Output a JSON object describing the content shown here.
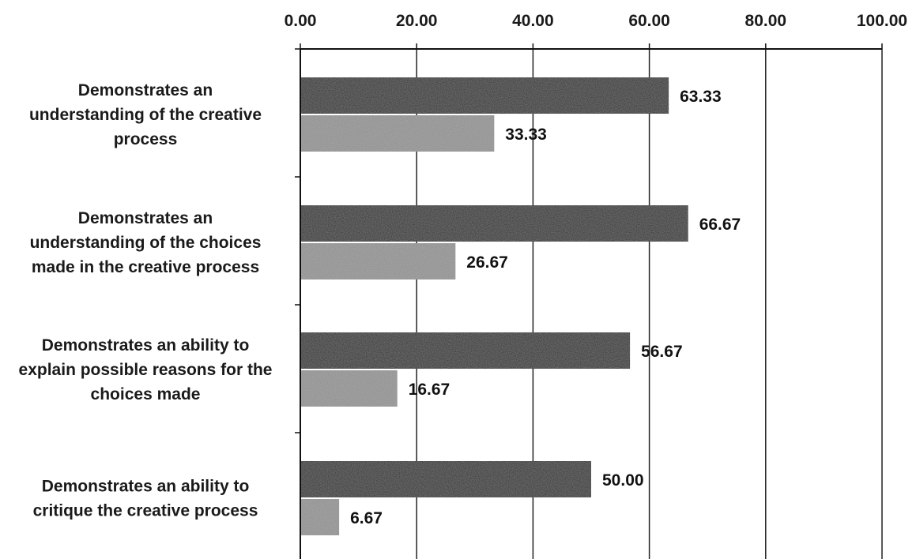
{
  "chart_data": {
    "type": "bar",
    "orientation": "horizontal",
    "title": "",
    "xlabel": "",
    "ylabel": "",
    "xlim": [
      0,
      100
    ],
    "x_ticks": [
      "0.00",
      "20.00",
      "40.00",
      "60.00",
      "80.00",
      "100.00"
    ],
    "x_tick_values": [
      0,
      20,
      40,
      60,
      80,
      100
    ],
    "x_axis_position": "top",
    "grid": true,
    "legend": "none",
    "categories": [
      [
        "Demonstrates an",
        "understanding of the creative",
        "process"
      ],
      [
        "Demonstrates an",
        "understanding of the choices",
        "made in the creative process"
      ],
      [
        "Demonstrates an ability to",
        "explain possible reasons for the",
        "choices made"
      ],
      [
        "Demonstrates an ability to",
        "critique the creative process"
      ]
    ],
    "series": [
      {
        "color": "#1e1e1e",
        "values": [
          63.33,
          66.67,
          56.67,
          50.0
        ],
        "labels": [
          "63.33",
          "66.67",
          "56.67",
          "50.00"
        ]
      },
      {
        "color": "#8c8c8c",
        "values": [
          33.33,
          26.67,
          16.67,
          6.67
        ],
        "labels": [
          "33.33",
          "26.67",
          "16.67",
          "6.67"
        ]
      }
    ]
  }
}
